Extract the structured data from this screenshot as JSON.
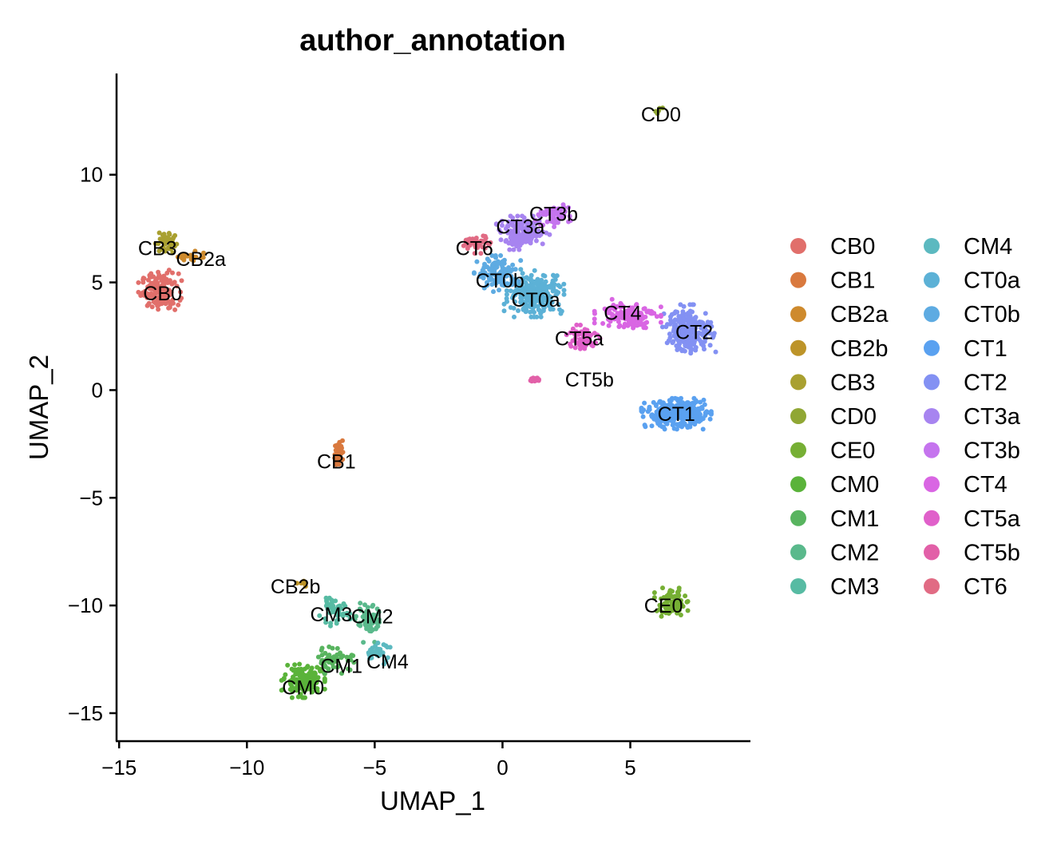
{
  "chart_data": {
    "type": "scatter",
    "title": "author_annotation",
    "xlabel": "UMAP_1",
    "ylabel": "UMAP_2",
    "xlim": [
      -15.1,
      9.7
    ],
    "ylim": [
      -16.3,
      14.7
    ],
    "xticks": [
      -15,
      -10,
      -5,
      0,
      5
    ],
    "xtick_labels": [
      "−15",
      "−10",
      "−5",
      "0",
      "5"
    ],
    "yticks": [
      -15,
      -10,
      -5,
      0,
      5,
      10
    ],
    "ytick_labels": [
      "−15",
      "−10",
      "−5",
      "0",
      "5",
      "10"
    ],
    "grid": false,
    "legend_position": "right",
    "clusters": [
      {
        "name": "CB0",
        "color": "#E16F6B",
        "label": [
          -13.3,
          4.5
        ],
        "center": [
          -13.4,
          4.6
        ],
        "spread": [
          0.65,
          0.75
        ],
        "n": 150
      },
      {
        "name": "CB1",
        "color": "#D9793E",
        "label": [
          -6.5,
          -3.3
        ],
        "center": [
          -6.4,
          -2.9
        ],
        "spread": [
          0.18,
          0.5
        ],
        "n": 45
      },
      {
        "name": "CB2a",
        "color": "#CE8A2D",
        "label": [
          -11.8,
          6.1
        ],
        "center": [
          -12.2,
          6.2
        ],
        "spread": [
          0.45,
          0.25
        ],
        "n": 25
      },
      {
        "name": "CB2b",
        "color": "#BD9429",
        "label": [
          -8.1,
          -9.1
        ],
        "center": [
          -8.0,
          -9.0
        ],
        "spread": [
          0.3,
          0.2
        ],
        "n": 6
      },
      {
        "name": "CB3",
        "color": "#A9A030",
        "label": [
          -13.5,
          6.6
        ],
        "center": [
          -13.2,
          6.9
        ],
        "spread": [
          0.35,
          0.5
        ],
        "n": 40
      },
      {
        "name": "CD0",
        "color": "#90A734",
        "label": [
          6.2,
          12.8
        ],
        "center": [
          6.2,
          13.0
        ],
        "spread": [
          0.25,
          0.12
        ],
        "n": 5
      },
      {
        "name": "CE0",
        "color": "#76AF34",
        "label": [
          6.3,
          -10.0
        ],
        "center": [
          6.6,
          -9.9
        ],
        "spread": [
          0.5,
          0.55
        ],
        "n": 80
      },
      {
        "name": "CM0",
        "color": "#5AB33A",
        "label": [
          -7.8,
          -13.8
        ],
        "center": [
          -7.8,
          -13.5
        ],
        "spread": [
          0.65,
          0.6
        ],
        "n": 170
      },
      {
        "name": "CM1",
        "color": "#58B45F",
        "label": [
          -6.3,
          -12.8
        ],
        "center": [
          -6.5,
          -12.5
        ],
        "spread": [
          0.7,
          0.5
        ],
        "n": 55
      },
      {
        "name": "CM2",
        "color": "#5AB98C",
        "label": [
          -5.1,
          -10.5
        ],
        "center": [
          -5.2,
          -10.8
        ],
        "spread": [
          0.45,
          0.7
        ],
        "n": 60
      },
      {
        "name": "CM3",
        "color": "#57BBA3",
        "label": [
          -6.7,
          -10.4
        ],
        "center": [
          -6.6,
          -10.3
        ],
        "spread": [
          0.55,
          0.5
        ],
        "n": 45
      },
      {
        "name": "CM4",
        "color": "#5CB9C0",
        "label": [
          -4.5,
          -12.6
        ],
        "center": [
          -4.9,
          -12.2
        ],
        "spread": [
          0.45,
          0.4
        ],
        "n": 30
      },
      {
        "name": "CT0a",
        "color": "#5CB1D6",
        "label": [
          1.3,
          4.2
        ],
        "center": [
          1.3,
          4.5
        ],
        "spread": [
          0.95,
          0.85
        ],
        "n": 260
      },
      {
        "name": "CT0b",
        "color": "#5EABE2",
        "label": [
          -0.1,
          5.1
        ],
        "center": [
          -0.2,
          5.4
        ],
        "spread": [
          0.7,
          0.65
        ],
        "n": 120
      },
      {
        "name": "CT1",
        "color": "#5AA1F0",
        "label": [
          6.8,
          -1.1
        ],
        "center": [
          6.8,
          -1.1
        ],
        "spread": [
          1.05,
          0.55
        ],
        "n": 340
      },
      {
        "name": "CT2",
        "color": "#8391F3",
        "label": [
          7.5,
          2.7
        ],
        "center": [
          7.3,
          2.8
        ],
        "spread": [
          0.8,
          0.9
        ],
        "n": 220
      },
      {
        "name": "CT3a",
        "color": "#A784F0",
        "label": [
          0.7,
          7.6
        ],
        "center": [
          0.8,
          7.3
        ],
        "spread": [
          0.8,
          0.6
        ],
        "n": 150
      },
      {
        "name": "CT3b",
        "color": "#C574EE",
        "label": [
          2.0,
          8.2
        ],
        "center": [
          2.0,
          8.1
        ],
        "spread": [
          0.55,
          0.4
        ],
        "n": 60
      },
      {
        "name": "CT4",
        "color": "#D966E3",
        "label": [
          4.7,
          3.6
        ],
        "center": [
          4.9,
          3.5
        ],
        "spread": [
          1.0,
          0.55
        ],
        "n": 130
      },
      {
        "name": "CT5a",
        "color": "#E060CA",
        "label": [
          3.0,
          2.4
        ],
        "center": [
          3.1,
          2.4
        ],
        "spread": [
          0.55,
          0.5
        ],
        "n": 70
      },
      {
        "name": "CT5b",
        "color": "#E260A8",
        "label": [
          3.4,
          0.5
        ],
        "center": [
          1.3,
          0.5
        ],
        "spread": [
          0.2,
          0.1
        ],
        "n": 15
      },
      {
        "name": "CT6",
        "color": "#E16B84",
        "label": [
          -1.1,
          6.6
        ],
        "center": [
          -1.0,
          6.8
        ],
        "spread": [
          0.45,
          0.35
        ],
        "n": 45
      }
    ]
  }
}
